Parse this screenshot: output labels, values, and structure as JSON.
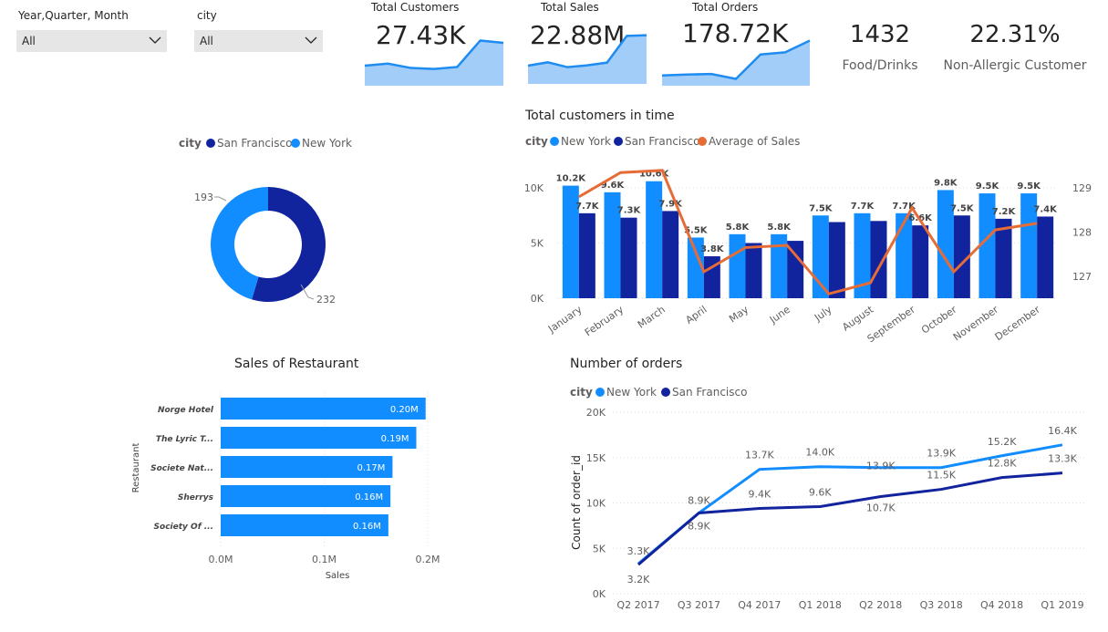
{
  "slicers": [
    {
      "label": "Year,Quarter, Month",
      "value": "All"
    },
    {
      "label": "city",
      "value": "All"
    }
  ],
  "kpis": [
    {
      "title": "Total Customers",
      "value": "27.43K",
      "trend": [
        60,
        66,
        53,
        50,
        56,
        135,
        128
      ]
    },
    {
      "title": "Total Sales",
      "value": "22.88M",
      "trend": [
        60,
        71,
        55,
        61,
        70,
        158,
        160
      ]
    },
    {
      "title": "Total Orders",
      "value": "178.72K",
      "trend": [
        33,
        36,
        38,
        22,
        101,
        108,
        146
      ]
    }
  ],
  "cards": [
    {
      "value": "1432",
      "label": "Food/Drinks"
    },
    {
      "value": "22.31%",
      "label": "Non-Allergic Customer"
    }
  ],
  "colors": {
    "new_york": "#118dff",
    "san_francisco": "#12239e",
    "average": "#e66c37",
    "spark_line": "#1e8cf0",
    "spark_fill": "#a3cdf9"
  },
  "chart_data": [
    {
      "type": "pie",
      "legend_title": "city",
      "legend_position": "top",
      "categories": [
        "San Francisco",
        "New York"
      ],
      "values": [
        232,
        193
      ],
      "labels": [
        "232",
        "193"
      ]
    },
    {
      "type": "bar",
      "title": "Total customers in time",
      "legend_title": "city",
      "legend_position": "top",
      "categories": [
        "January",
        "February",
        "March",
        "April",
        "May",
        "June",
        "July",
        "August",
        "September",
        "October",
        "November",
        "December"
      ],
      "series": [
        {
          "name": "New York",
          "values": [
            10.2,
            9.6,
            10.6,
            5.5,
            5.8,
            5.8,
            7.5,
            7.7,
            7.7,
            9.8,
            9.5,
            9.5
          ],
          "labels": [
            "10.2K",
            "9.6K",
            "10.6K",
            "5.5K",
            "5.8K",
            "5.8K",
            "7.5K",
            "7.7K",
            "7.7K",
            "9.8K",
            "9.5K",
            "9.5K"
          ]
        },
        {
          "name": "San Francisco",
          "values": [
            7.7,
            7.3,
            7.9,
            3.8,
            5.0,
            5.2,
            6.9,
            7.0,
            6.6,
            7.5,
            7.2,
            7.4
          ],
          "labels": [
            "7.7K",
            "7.3K",
            "7.9K",
            "3.8K",
            "",
            "",
            "",
            "",
            "6.6K",
            "7.5K",
            "7.2K",
            "7.4K"
          ]
        },
        {
          "name": "Average of Sales",
          "type": "line",
          "axis": "right",
          "values": [
            128.8,
            129.35,
            129.4,
            127.1,
            127.65,
            127.7,
            126.6,
            126.85,
            128.55,
            127.1,
            128.05,
            128.2
          ]
        }
      ],
      "y_ticks": [
        "0K",
        "5K",
        "10K"
      ],
      "ylim": [
        0,
        10000
      ],
      "y2_ticks": [
        "127",
        "128",
        "129"
      ],
      "y2lim": [
        126.5,
        129.5
      ],
      "grid": true
    },
    {
      "type": "bar",
      "orientation": "horizontal",
      "title": "Sales of Restaurant",
      "xlabel": "Sales",
      "ylabel": "Restaurant",
      "categories": [
        "Norge Hotel",
        "The Lyric T...",
        "Societe Nat...",
        "Sherrys",
        "Society Of ..."
      ],
      "values": [
        0.198,
        0.189,
        0.166,
        0.164,
        0.162
      ],
      "labels": [
        "0.20M",
        "0.19M",
        "0.17M",
        "0.16M",
        "0.16M"
      ],
      "x_ticks": [
        "0.0M",
        "0.1M",
        "0.2M"
      ],
      "xlim": [
        0,
        0.2
      ],
      "grid": true
    },
    {
      "type": "line",
      "title": "Number of orders",
      "legend_title": "city",
      "legend_position": "top",
      "ylabel": "Count of order_id",
      "categories": [
        "Q2 2017",
        "Q3 2017",
        "Q4 2017",
        "Q1 2018",
        "Q2 2018",
        "Q3 2018",
        "Q4 2018",
        "Q1 2019"
      ],
      "series": [
        {
          "name": "New York",
          "values": [
            3.3,
            8.9,
            13.7,
            14.0,
            13.9,
            13.9,
            15.2,
            16.4
          ],
          "labels": [
            "3.3K",
            "8.9K",
            "13.7K",
            "14.0K",
            "13.9K",
            "13.9K",
            "15.2K",
            "16.4K"
          ]
        },
        {
          "name": "San Francisco",
          "values": [
            3.2,
            8.9,
            9.4,
            9.6,
            10.7,
            11.5,
            12.8,
            13.3
          ],
          "labels": [
            "3.2K",
            "8.9K",
            "9.4K",
            "9.6K",
            "10.7K",
            "11.5K",
            "12.8K",
            "13.3K"
          ]
        }
      ],
      "y_ticks": [
        "0K",
        "5K",
        "10K",
        "15K",
        "20K"
      ],
      "ylim": [
        0,
        20000
      ],
      "grid": true
    }
  ]
}
